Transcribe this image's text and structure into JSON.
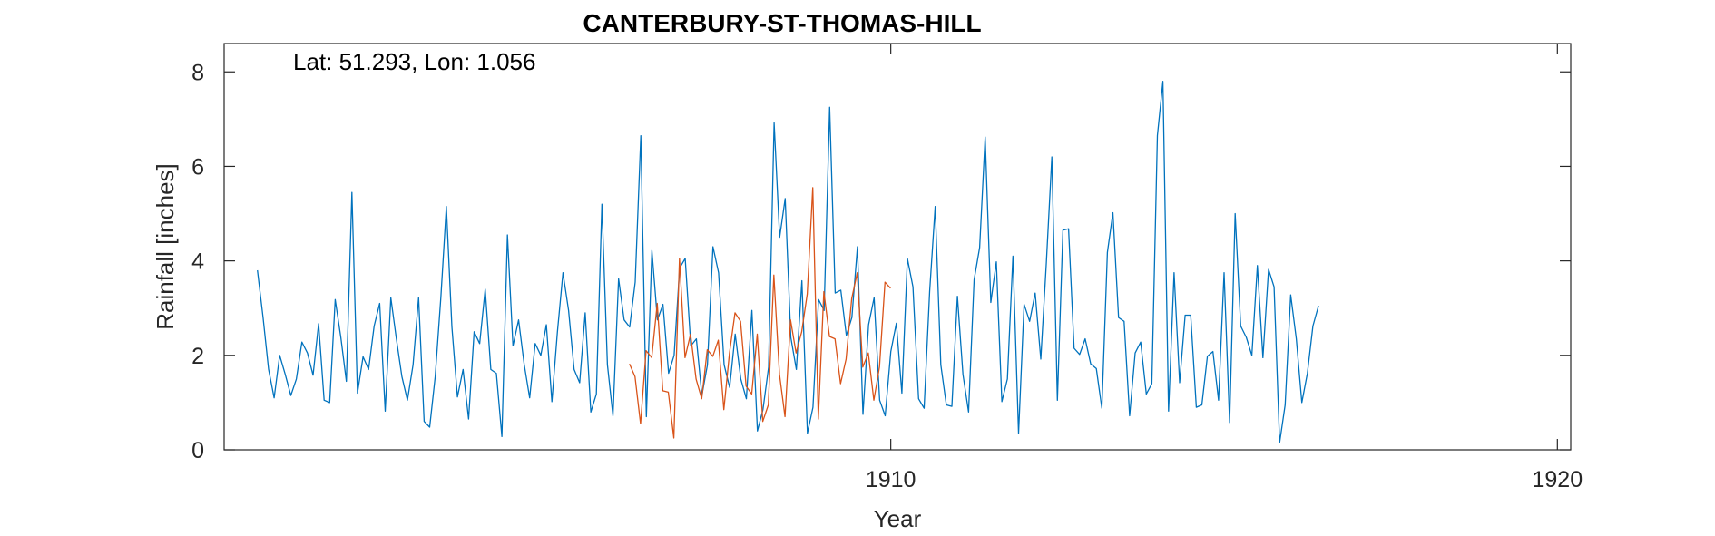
{
  "chart_data": {
    "type": "line",
    "title": "CANTERBURY-ST-THOMAS-HILL",
    "xlabel": "Year",
    "ylabel": "Rainfall [inches]",
    "annotation": "Lat: 51.293, Lon: 1.056",
    "xlim": [
      1900.0,
      1920.2
    ],
    "ylim": [
      0,
      8.6
    ],
    "xticks": [
      1910,
      1920
    ],
    "yticks": [
      0,
      2,
      4,
      6,
      8
    ],
    "grid": false,
    "legend": "none",
    "series": [
      {
        "color": "#0072BD",
        "x_start": 1900.5,
        "x_step": 0.0833333,
        "values": [
          3.8,
          2.8,
          1.7,
          1.1,
          2.0,
          1.6,
          1.15,
          1.5,
          2.28,
          2.05,
          1.58,
          2.67,
          1.05,
          1.0,
          3.18,
          2.38,
          1.45,
          5.45,
          1.2,
          1.97,
          1.7,
          2.62,
          3.1,
          0.82,
          3.22,
          2.35,
          1.55,
          1.05,
          1.8,
          3.22,
          0.6,
          0.48,
          1.55,
          3.22,
          5.15,
          2.6,
          1.12,
          1.7,
          0.65,
          2.5,
          2.25,
          3.4,
          1.7,
          1.62,
          0.28,
          4.55,
          2.2,
          2.75,
          1.82,
          1.1,
          2.25,
          2.0,
          2.65,
          1.02,
          2.5,
          3.75,
          2.95,
          1.7,
          1.42,
          2.9,
          0.8,
          1.18,
          5.2,
          1.8,
          0.72,
          3.62,
          2.75,
          2.6,
          3.55,
          6.65,
          0.7,
          4.22,
          2.75,
          3.08,
          1.62,
          2.0,
          3.85,
          4.05,
          2.2,
          2.35,
          1.15,
          1.8,
          4.3,
          3.75,
          1.8,
          1.32,
          2.45,
          1.5,
          1.08,
          2.95,
          0.4,
          0.85,
          1.75,
          6.92,
          4.5,
          5.32,
          2.38,
          1.7,
          3.58,
          0.35,
          0.9,
          3.18,
          2.95,
          7.25,
          3.32,
          3.38,
          2.42,
          2.8,
          4.3,
          0.75,
          2.65,
          3.22,
          1.05,
          0.72,
          2.08,
          2.68,
          1.2,
          4.05,
          3.45,
          1.08,
          0.88,
          3.35,
          5.15,
          1.8,
          0.95,
          0.92,
          3.25,
          1.6,
          0.8,
          3.6,
          4.28,
          6.62,
          3.12,
          3.98,
          1.02,
          1.5,
          4.1,
          0.35,
          3.08,
          2.72,
          3.32,
          1.92,
          3.95,
          6.2,
          1.05,
          4.65,
          4.68,
          2.15,
          2.02,
          2.35,
          1.82,
          1.72,
          0.88,
          4.18,
          5.02,
          2.8,
          2.72,
          0.72,
          2.05,
          2.28,
          1.18,
          1.4,
          6.65,
          7.8,
          0.82,
          3.75,
          1.42,
          2.85,
          2.85,
          0.9,
          0.95,
          1.98,
          2.08,
          1.05,
          3.75,
          0.58,
          5.0,
          2.62,
          2.38,
          2.0,
          3.9,
          1.95,
          3.82,
          3.45,
          0.15,
          0.95,
          3.28,
          2.35,
          1.0,
          1.62,
          2.62,
          3.05
        ]
      },
      {
        "color": "#D95319",
        "x_start": 1906.08,
        "x_step": 0.0833333,
        "values": [
          1.82,
          1.55,
          0.55,
          2.1,
          1.95,
          3.1,
          1.25,
          1.22,
          0.25,
          4.05,
          1.95,
          2.45,
          1.5,
          1.08,
          2.12,
          1.98,
          2.32,
          0.85,
          2.05,
          2.9,
          2.72,
          1.35,
          1.18,
          2.45,
          0.6,
          0.95,
          3.7,
          1.6,
          0.7,
          2.75,
          2.05,
          2.5,
          3.3,
          5.55,
          0.65,
          3.35,
          2.4,
          2.35,
          1.4,
          1.92,
          3.2,
          3.75,
          1.75,
          2.05,
          1.05,
          1.75,
          3.55,
          3.42
        ]
      }
    ]
  }
}
